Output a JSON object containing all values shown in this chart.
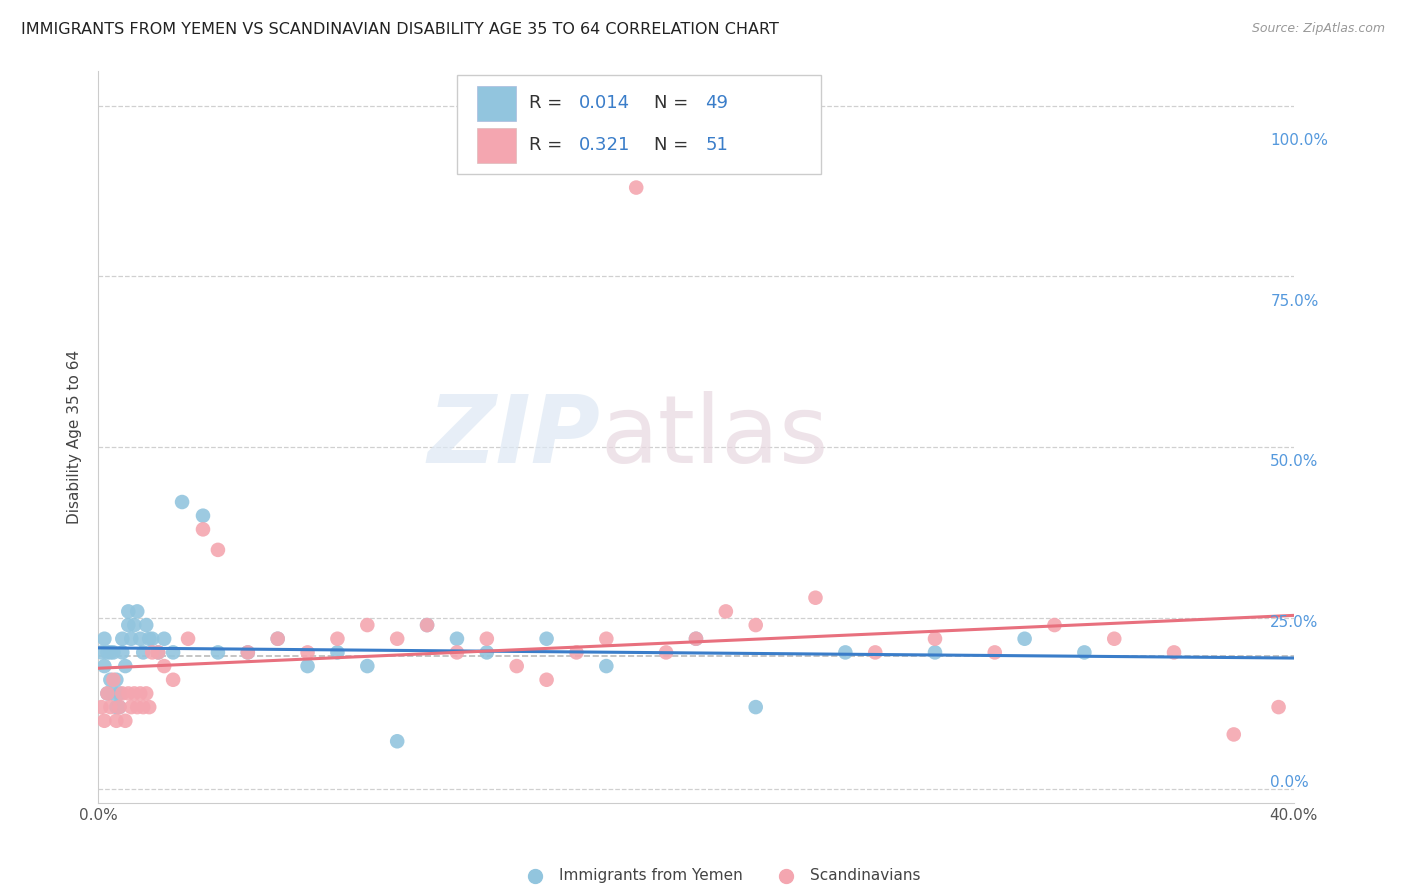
{
  "title": "IMMIGRANTS FROM YEMEN VS SCANDINAVIAN DISABILITY AGE 35 TO 64 CORRELATION CHART",
  "source": "Source: ZipAtlas.com",
  "ylabel": "Disability Age 35 to 64",
  "ytick_labels": [
    "0.0%",
    "25.0%",
    "50.0%",
    "75.0%",
    "100.0%"
  ],
  "ytick_values": [
    0.0,
    0.25,
    0.5,
    0.75,
    1.0
  ],
  "xlim": [
    0.0,
    0.4
  ],
  "ylim": [
    -0.02,
    1.05
  ],
  "watermark_top": "ZIP",
  "watermark_bot": "atlas",
  "legend_R1": "R = ",
  "legend_V1": "0.014",
  "legend_N1_label": "N = ",
  "legend_N1": "49",
  "legend_R2": "R = ",
  "legend_V2": "0.321",
  "legend_N2_label": "N = ",
  "legend_N2": "51",
  "color_yemen": "#92c5de",
  "color_scand": "#f4a6b0",
  "color_yemen_line": "#3a7dc9",
  "color_scand_line": "#e8707e",
  "color_blue_text": "#3a7dc9",
  "color_title": "#222222",
  "color_axis_label": "#555555",
  "color_right_tick": "#5599dd",
  "background_color": "#ffffff",
  "grid_color": "#d0d0d0",
  "dashed_line_y": 0.195,
  "dashed_line_color": "#bbbbbb",
  "yemen_x": [
    0.001,
    0.002,
    0.002,
    0.003,
    0.003,
    0.004,
    0.004,
    0.005,
    0.005,
    0.006,
    0.006,
    0.007,
    0.007,
    0.008,
    0.008,
    0.009,
    0.01,
    0.01,
    0.011,
    0.012,
    0.013,
    0.014,
    0.015,
    0.016,
    0.017,
    0.018,
    0.02,
    0.022,
    0.025,
    0.028,
    0.035,
    0.04,
    0.05,
    0.06,
    0.07,
    0.08,
    0.09,
    0.1,
    0.11,
    0.12,
    0.13,
    0.15,
    0.17,
    0.2,
    0.22,
    0.25,
    0.28,
    0.31,
    0.33
  ],
  "yemen_y": [
    0.2,
    0.22,
    0.18,
    0.14,
    0.2,
    0.16,
    0.2,
    0.14,
    0.2,
    0.16,
    0.12,
    0.14,
    0.12,
    0.2,
    0.22,
    0.18,
    0.24,
    0.26,
    0.22,
    0.24,
    0.26,
    0.22,
    0.2,
    0.24,
    0.22,
    0.22,
    0.2,
    0.22,
    0.2,
    0.42,
    0.4,
    0.2,
    0.2,
    0.22,
    0.18,
    0.2,
    0.18,
    0.07,
    0.24,
    0.22,
    0.2,
    0.22,
    0.18,
    0.22,
    0.12,
    0.2,
    0.2,
    0.22,
    0.2
  ],
  "scand_x": [
    0.001,
    0.002,
    0.003,
    0.004,
    0.005,
    0.006,
    0.007,
    0.008,
    0.009,
    0.01,
    0.011,
    0.012,
    0.013,
    0.014,
    0.015,
    0.016,
    0.017,
    0.018,
    0.02,
    0.022,
    0.025,
    0.03,
    0.035,
    0.04,
    0.05,
    0.06,
    0.07,
    0.08,
    0.09,
    0.1,
    0.11,
    0.12,
    0.13,
    0.14,
    0.15,
    0.16,
    0.17,
    0.18,
    0.19,
    0.2,
    0.21,
    0.22,
    0.24,
    0.26,
    0.28,
    0.3,
    0.32,
    0.34,
    0.36,
    0.38,
    0.395
  ],
  "scand_y": [
    0.12,
    0.1,
    0.14,
    0.12,
    0.16,
    0.1,
    0.12,
    0.14,
    0.1,
    0.14,
    0.12,
    0.14,
    0.12,
    0.14,
    0.12,
    0.14,
    0.12,
    0.2,
    0.2,
    0.18,
    0.16,
    0.22,
    0.38,
    0.35,
    0.2,
    0.22,
    0.2,
    0.22,
    0.24,
    0.22,
    0.24,
    0.2,
    0.22,
    0.18,
    0.16,
    0.2,
    0.22,
    0.88,
    0.2,
    0.22,
    0.26,
    0.24,
    0.28,
    0.2,
    0.22,
    0.2,
    0.24,
    0.22,
    0.2,
    0.08,
    0.12
  ]
}
